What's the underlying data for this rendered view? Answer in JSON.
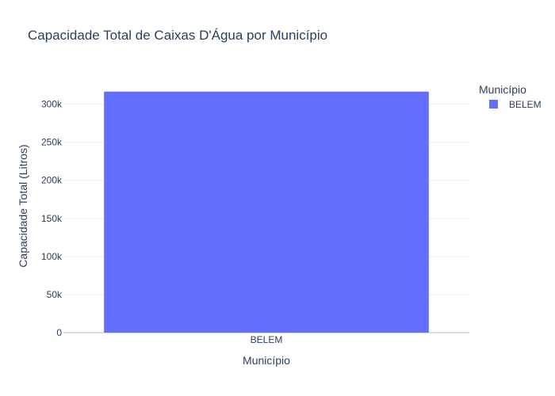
{
  "chart_data": {
    "type": "bar",
    "title": "Capacidade Total de Caixas D'Água por Município",
    "xlabel": "Município",
    "ylabel": "Capacidade Total (Litros)",
    "categories": [
      "BELEM"
    ],
    "series": [
      {
        "name": "BELEM",
        "values": [
          316500
        ],
        "color": "#636efa"
      }
    ],
    "ylim": [
      0,
      320000
    ],
    "yticks": [
      0,
      50000,
      100000,
      150000,
      200000,
      250000,
      300000
    ],
    "ytick_labels": [
      "0",
      "50k",
      "100k",
      "150k",
      "200k",
      "250k",
      "300k"
    ],
    "grid": true,
    "legend": {
      "title": "Município",
      "placement": "top-right"
    }
  }
}
